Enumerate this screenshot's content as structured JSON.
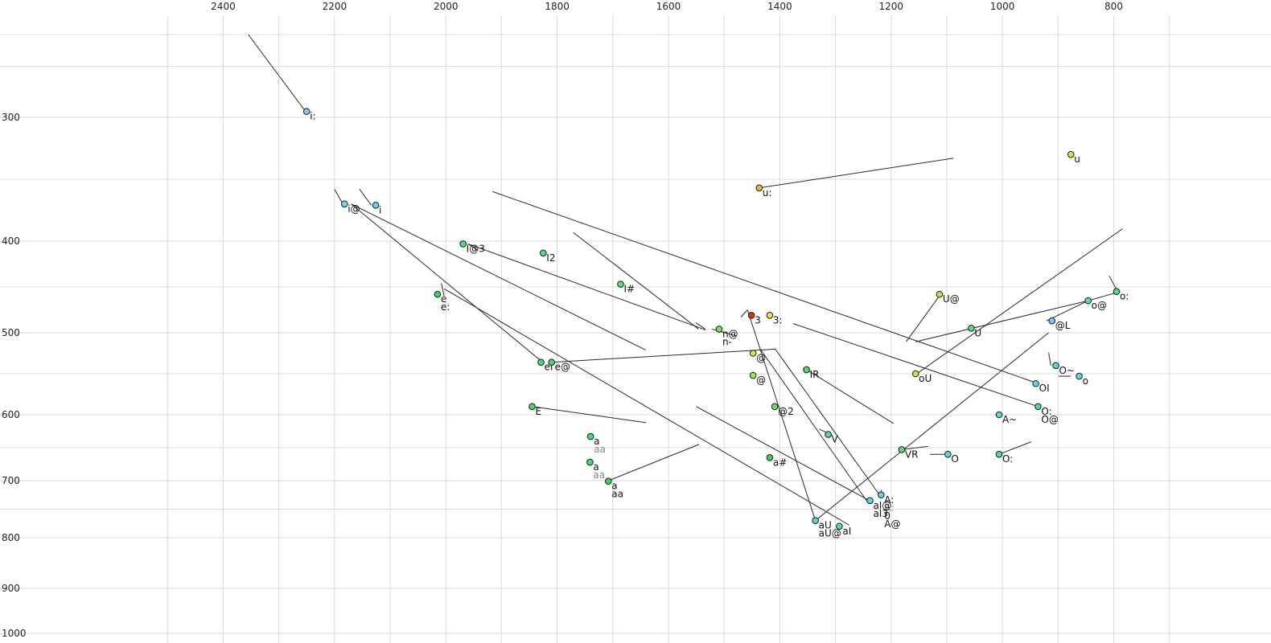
{
  "chart_data": {
    "type": "scatter",
    "title": "",
    "xlabel": "",
    "ylabel": "",
    "x_reversed": true,
    "y_reversed": true,
    "y_scale": "nonlinear (compressed at high values)",
    "xlim": [
      2400,
      700
    ],
    "ylim": [
      230,
      1000
    ],
    "grid": true,
    "x_ticks": [
      {
        "value": 2400,
        "label": "2400"
      },
      {
        "value": 2200,
        "label": "2200"
      },
      {
        "value": 2000,
        "label": "2000"
      },
      {
        "value": 1800,
        "label": "1800"
      },
      {
        "value": 1600,
        "label": "1600"
      },
      {
        "value": 1400,
        "label": "1400"
      },
      {
        "value": 1200,
        "label": "1200"
      },
      {
        "value": 1000,
        "label": "1000"
      },
      {
        "value": 800,
        "label": "800"
      }
    ],
    "y_ticks": [
      {
        "value": 300,
        "label": "300"
      },
      {
        "value": 400,
        "label": "400"
      },
      {
        "value": 500,
        "label": "500"
      },
      {
        "value": 600,
        "label": "600"
      },
      {
        "value": 700,
        "label": "700"
      },
      {
        "value": 800,
        "label": "800"
      },
      {
        "value": 900,
        "label": "900"
      },
      {
        "value": 1000,
        "label": "1000"
      }
    ],
    "points": [
      {
        "label": "i:",
        "x": 2250,
        "y": 295,
        "color": "#7ec8ee",
        "extra_labels": []
      },
      {
        "label": "i@",
        "x": 2182,
        "y": 370,
        "color": "#6cdcf0",
        "extra_labels": []
      },
      {
        "label": "i",
        "x": 2126,
        "y": 371,
        "color": "#5cd8e8",
        "extra_labels": []
      },
      {
        "label": "I@3",
        "x": 1969,
        "y": 403,
        "color": "#56dd78",
        "extra_labels": []
      },
      {
        "label": "I2",
        "x": 1825,
        "y": 413,
        "color": "#4fe08a",
        "extra_labels": []
      },
      {
        "label": "e",
        "x": 2015,
        "y": 458,
        "color": "#38d45c",
        "extra_labels": [
          {
            "text": "e:",
            "color": "#111111"
          }
        ]
      },
      {
        "label": "I#",
        "x": 1686,
        "y": 447,
        "color": "#5ae070",
        "extra_labels": []
      },
      {
        "label": "n@",
        "x": 1509,
        "y": 496,
        "color": "#7ae04c",
        "extra_labels": [
          {
            "text": "n-",
            "color": "#111111"
          }
        ]
      },
      {
        "label": "3",
        "x": 1451,
        "y": 481,
        "color": "#d83a10",
        "extra_labels": []
      },
      {
        "label": "3:",
        "x": 1418,
        "y": 481,
        "color": "#f0e040",
        "extra_labels": []
      },
      {
        "label": "u:",
        "x": 1437,
        "y": 357,
        "color": "#f3b82c",
        "extra_labels": []
      },
      {
        "label": "u",
        "x": 877,
        "y": 330,
        "color": "#d8e838",
        "extra_labels": []
      },
      {
        "label": "U@",
        "x": 1113,
        "y": 458,
        "color": "#b4e84c",
        "extra_labels": []
      },
      {
        "label": "U",
        "x": 1056,
        "y": 495,
        "color": "#5edc8c",
        "extra_labels": []
      },
      {
        "label": "oU",
        "x": 1156,
        "y": 550,
        "color": "#c8e83c",
        "extra_labels": []
      },
      {
        "label": "o@",
        "x": 846,
        "y": 465,
        "color": "#52dcc4",
        "extra_labels": []
      },
      {
        "label": "o:",
        "x": 795,
        "y": 455,
        "color": "#4cdc8c",
        "extra_labels": []
      },
      {
        "label": "@L",
        "x": 911,
        "y": 487,
        "color": "#7ec8ee",
        "extra_labels": []
      },
      {
        "label": "eI",
        "x": 1829,
        "y": 536,
        "color": "#4cd86c",
        "extra_labels": []
      },
      {
        "label": "e@",
        "x": 1810,
        "y": 536,
        "color": "#4cd86c",
        "extra_labels": []
      },
      {
        "label": "@",
        "x": 1448,
        "y": 525,
        "color": "#c8e850",
        "extra_labels": []
      },
      {
        "label": "@",
        "x": 1448,
        "y": 552,
        "color": "#94e858",
        "extra_labels": []
      },
      {
        "label": "IR",
        "x": 1352,
        "y": 545,
        "color": "#58d860",
        "extra_labels": []
      },
      {
        "label": "@2",
        "x": 1409,
        "y": 590,
        "color": "#64e06c",
        "extra_labels": []
      },
      {
        "label": "E",
        "x": 1845,
        "y": 590,
        "color": "#4cd870",
        "extra_labels": []
      },
      {
        "label": "V",
        "x": 1313,
        "y": 630,
        "color": "#50dcb0",
        "extra_labels": []
      },
      {
        "label": "a#",
        "x": 1418,
        "y": 665,
        "color": "#3cd454",
        "extra_labels": []
      },
      {
        "label": "a",
        "x": 1740,
        "y": 633,
        "color": "#44dc78",
        "extra_labels": [
          {
            "text": "aa",
            "color": "#888888"
          }
        ]
      },
      {
        "label": "a",
        "x": 1741,
        "y": 672,
        "color": "#44dc78",
        "extra_labels": [
          {
            "text": "aa",
            "color": "#888888"
          }
        ]
      },
      {
        "label": "a",
        "x": 1708,
        "y": 701,
        "color": "#3cd454",
        "extra_labels": [
          {
            "text": "aa",
            "color": "#111111"
          }
        ]
      },
      {
        "label": "OI",
        "x": 940,
        "y": 562,
        "color": "#5cd8e8",
        "extra_labels": []
      },
      {
        "label": "O:",
        "x": 936,
        "y": 590,
        "color": "#4cd8a8",
        "extra_labels": [
          {
            "text": "O@",
            "color": "#111111"
          }
        ]
      },
      {
        "label": "O~",
        "x": 904,
        "y": 540,
        "color": "#5cd8c8",
        "extra_labels": []
      },
      {
        "label": "o",
        "x": 862,
        "y": 553,
        "color": "#5cd8e8",
        "extra_labels": []
      },
      {
        "label": "A~",
        "x": 1006,
        "y": 600,
        "color": "#56dcc0",
        "extra_labels": []
      },
      {
        "label": "O",
        "x": 1098,
        "y": 660,
        "color": "#5cd8e8",
        "extra_labels": []
      },
      {
        "label": "O:",
        "x": 1006,
        "y": 660,
        "color": "#52dcb4",
        "extra_labels": []
      },
      {
        "label": "VR",
        "x": 1181,
        "y": 653,
        "color": "#58dc7c",
        "extra_labels": []
      },
      {
        "label": "A:",
        "x": 1218,
        "y": 725,
        "color": "#5cd8e8",
        "extra_labels": [
          {
            "text": "A:",
            "color": "#888888"
          },
          {
            "text": "0",
            "color": "#111111"
          },
          {
            "text": "A@",
            "color": "#111111"
          }
        ]
      },
      {
        "label": "aI@",
        "x": 1238,
        "y": 735,
        "color": "#5cd8e8",
        "extra_labels": [
          {
            "text": "aI3",
            "color": "#111111"
          }
        ]
      },
      {
        "label": "aU",
        "x": 1336,
        "y": 770,
        "color": "#56dcc0",
        "extra_labels": [
          {
            "text": "aU@",
            "color": "#111111"
          }
        ]
      },
      {
        "label": "aI",
        "x": 1293,
        "y": 780,
        "color": "#56dcc0",
        "extra_labels": []
      }
    ],
    "segments": [
      [
        [
          2252,
          295
        ],
        [
          2355,
          230
        ]
      ],
      [
        [
          2185,
          370
        ],
        [
          2200,
          358
        ]
      ],
      [
        [
          2134,
          371
        ],
        [
          2155,
          358
        ]
      ],
      [
        [
          2170,
          370
        ],
        [
          1641,
          521
        ]
      ],
      [
        [
          2170,
          370
        ],
        [
          1826,
          536
        ]
      ],
      [
        [
          2003,
          460
        ],
        [
          2008,
          446
        ]
      ],
      [
        [
          2003,
          452
        ],
        [
          1275,
          778
        ]
      ],
      [
        [
          1960,
          403
        ],
        [
          1533,
          497
        ]
      ],
      [
        [
          1960,
          403
        ],
        [
          1942,
          410
        ]
      ],
      [
        [
          1916,
          360
        ],
        [
          936,
          562
        ]
      ],
      [
        [
          1771,
          393
        ],
        [
          1546,
          496
        ]
      ],
      [
        [
          1534,
          496
        ],
        [
          1551,
          489
        ]
      ],
      [
        [
          1522,
          496
        ],
        [
          1477,
          504
        ]
      ],
      [
        [
          1810,
          536
        ],
        [
          1408,
          520
        ]
      ],
      [
        [
          1408,
          520
        ],
        [
          1223,
          722
        ]
      ],
      [
        [
          1845,
          590
        ],
        [
          1640,
          612
        ]
      ],
      [
        [
          1710,
          701
        ],
        [
          1545,
          645
        ]
      ],
      [
        [
          1437,
          357
        ],
        [
          1088,
          333
        ]
      ],
      [
        [
          1111,
          458
        ],
        [
          1173,
          511
        ]
      ],
      [
        [
          1154,
          550
        ],
        [
          784,
          390
        ]
      ],
      [
        [
          1156,
          511
        ],
        [
          846,
          465
        ]
      ],
      [
        [
          846,
          465
        ],
        [
          788,
          455
        ]
      ],
      [
        [
          921,
          487
        ],
        [
          846,
          465
        ]
      ],
      [
        [
          793,
          455
        ],
        [
          808,
          438
        ]
      ],
      [
        [
          1376,
          490
        ],
        [
          936,
          590
        ]
      ],
      [
        [
          1470,
          483
        ],
        [
          1458,
          475
        ]
      ],
      [
        [
          1458,
          475
        ],
        [
          1336,
          770
        ]
      ],
      [
        [
          1352,
          545
        ],
        [
          1196,
          613
        ]
      ],
      [
        [
          1329,
          622
        ],
        [
          1307,
          630
        ]
      ],
      [
        [
          1550,
          590
        ],
        [
          1239,
          735
        ]
      ],
      [
        [
          1435,
          520
        ],
        [
          1244,
          735
        ]
      ],
      [
        [
          1336,
          770
        ],
        [
          917,
          500
        ]
      ],
      [
        [
          917,
          524
        ],
        [
          913,
          540
        ]
      ],
      [
        [
          877,
          553
        ],
        [
          899,
          553
        ]
      ],
      [
        [
          1130,
          660
        ],
        [
          1102,
          660
        ]
      ],
      [
        [
          1006,
          660
        ],
        [
          948,
          641
        ]
      ],
      [
        [
          1181,
          653
        ],
        [
          1134,
          648
        ]
      ],
      [
        [
          1218,
          716
        ],
        [
          1218,
          724
        ]
      ]
    ]
  }
}
